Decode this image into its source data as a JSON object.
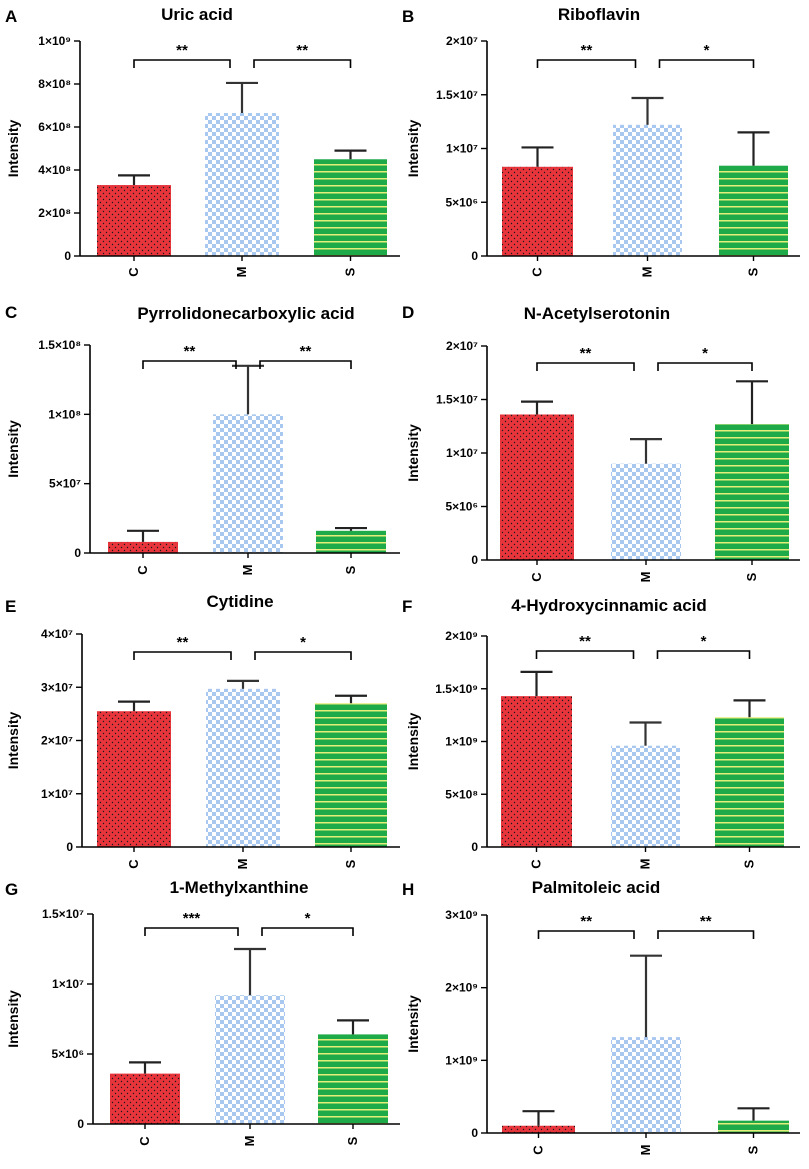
{
  "chart_data": [
    {
      "panel": "A",
      "type": "bar",
      "title": "Uric acid",
      "ylabel": "Intensity",
      "categories": [
        "C",
        "M",
        "S"
      ],
      "values": [
        330000000,
        665000000,
        450000000
      ],
      "errors": [
        45000000,
        140000000,
        40000000
      ],
      "ylim": [
        0,
        1000000000
      ],
      "yticks": [
        0,
        200000000,
        400000000,
        600000000,
        800000000,
        1000000000
      ],
      "ytick_labels": [
        "0",
        "2×10⁸",
        "4×10⁸",
        "6×10⁸",
        "8×10⁸",
        "1×10⁹"
      ],
      "significance": [
        {
          "label": "**"
        },
        {
          "label": "**"
        }
      ]
    },
    {
      "panel": "B",
      "type": "bar",
      "title": "Riboflavin",
      "ylabel": "Intensity",
      "categories": [
        "C",
        "M",
        "S"
      ],
      "values": [
        8300000,
        12200000,
        8400000
      ],
      "errors": [
        1800000,
        2500000,
        3100000
      ],
      "ylim": [
        0,
        20000000
      ],
      "yticks": [
        0,
        5000000,
        10000000,
        15000000,
        20000000
      ],
      "ytick_labels": [
        "0",
        "5×10⁶",
        "1×10⁷",
        "1.5×10⁷",
        "2×10⁷"
      ],
      "significance": [
        {
          "label": "**"
        },
        {
          "label": "*"
        }
      ]
    },
    {
      "panel": "C",
      "type": "bar",
      "title": "Pyrrolidonecarboxylic acid",
      "ylabel": "Intensity",
      "categories": [
        "C",
        "M",
        "S"
      ],
      "values": [
        8000000,
        100000000,
        16000000
      ],
      "errors": [
        8000000,
        35000000,
        2000000
      ],
      "ylim": [
        0,
        150000000
      ],
      "yticks": [
        0,
        50000000,
        100000000,
        150000000
      ],
      "ytick_labels": [
        "0",
        "5×10⁷",
        "1×10⁸",
        "1.5×10⁸"
      ],
      "significance": [
        {
          "label": "**"
        },
        {
          "label": "**"
        }
      ]
    },
    {
      "panel": "D",
      "type": "bar",
      "title": "N-Acetylserotonin",
      "ylabel": "Intensity",
      "categories": [
        "C",
        "M",
        "S"
      ],
      "values": [
        13600000,
        9000000,
        12700000
      ],
      "errors": [
        1200000,
        2300000,
        4000000
      ],
      "ylim": [
        0,
        20000000
      ],
      "yticks": [
        0,
        5000000,
        10000000,
        15000000,
        20000000
      ],
      "ytick_labels": [
        "0",
        "5×10⁶",
        "1×10⁷",
        "1.5×10⁷",
        "2×10⁷"
      ],
      "significance": [
        {
          "label": "**"
        },
        {
          "label": "*"
        }
      ]
    },
    {
      "panel": "E",
      "type": "bar",
      "title": "Cytidine",
      "ylabel": "Intensity",
      "categories": [
        "C",
        "M",
        "S"
      ],
      "values": [
        25500000,
        29700000,
        27000000
      ],
      "errors": [
        1800000,
        1500000,
        1400000
      ],
      "ylim": [
        0,
        40000000
      ],
      "yticks": [
        0,
        10000000,
        20000000,
        30000000,
        40000000
      ],
      "ytick_labels": [
        "0",
        "1×10⁷",
        "2×10⁷",
        "3×10⁷",
        "4×10⁷"
      ],
      "significance": [
        {
          "label": "**"
        },
        {
          "label": "*"
        }
      ]
    },
    {
      "panel": "F",
      "type": "bar",
      "title": "4-Hydroxycinnamic acid",
      "ylabel": "Intensity",
      "categories": [
        "C",
        "M",
        "S"
      ],
      "values": [
        1430000000,
        960000000,
        1230000000
      ],
      "errors": [
        230000000,
        220000000,
        160000000
      ],
      "ylim": [
        0,
        2000000000
      ],
      "yticks": [
        0,
        500000000,
        1000000000,
        1500000000,
        2000000000
      ],
      "ytick_labels": [
        "0",
        "5×10⁸",
        "1×10⁹",
        "1.5×10⁹",
        "2×10⁹"
      ],
      "significance": [
        {
          "label": "**"
        },
        {
          "label": "*"
        }
      ]
    },
    {
      "panel": "G",
      "type": "bar",
      "title": "1-Methylxanthine",
      "ylabel": "Intensity",
      "categories": [
        "C",
        "M",
        "S"
      ],
      "values": [
        3600000,
        9200000,
        6400000
      ],
      "errors": [
        800000,
        3300000,
        1000000
      ],
      "ylim": [
        0,
        15000000
      ],
      "yticks": [
        0,
        5000000,
        10000000,
        15000000
      ],
      "ytick_labels": [
        "0",
        "5×10⁶",
        "1×10⁷",
        "1.5×10⁷"
      ],
      "significance": [
        {
          "label": "***"
        },
        {
          "label": "*"
        }
      ]
    },
    {
      "panel": "H",
      "type": "bar",
      "title": "Palmitoleic acid",
      "ylabel": "Intensity",
      "categories": [
        "C",
        "M",
        "S"
      ],
      "values": [
        100000000,
        1320000000,
        170000000
      ],
      "errors": [
        200000000,
        1120000000,
        170000000
      ],
      "ylim": [
        0,
        3000000000
      ],
      "yticks": [
        0,
        1000000000,
        2000000000,
        3000000000
      ],
      "ytick_labels": [
        "0",
        "1×10⁹",
        "2×10⁹",
        "3×10⁹"
      ],
      "significance": [
        {
          "label": "**"
        },
        {
          "label": "**"
        }
      ]
    }
  ],
  "colors": {
    "C": "#e8353c",
    "M_base": "#ffffff",
    "M_check": "#a8c8f0",
    "S": "#1faa4a",
    "S_stripe": "#e6ee7a",
    "axis": "#000000"
  }
}
